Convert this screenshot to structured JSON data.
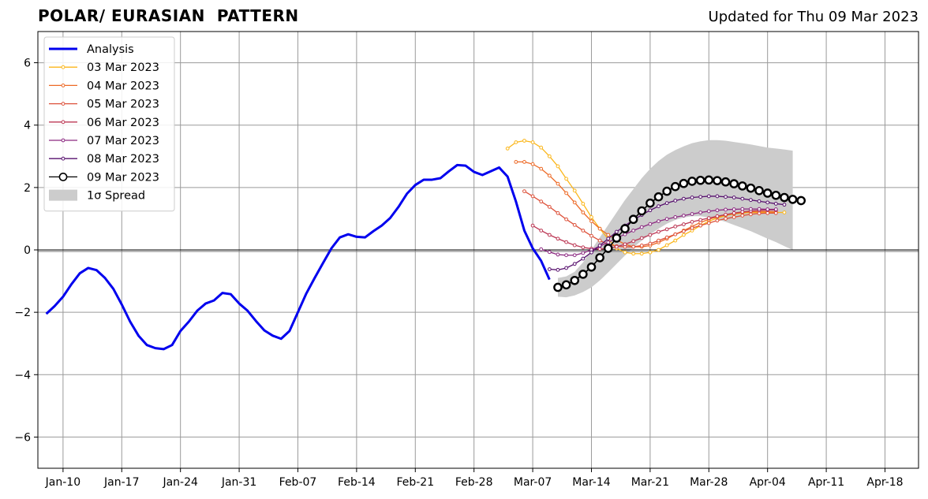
{
  "title": "POLAR/ EURASIAN  PATTERN",
  "subtitle": "Updated for Thu 09 Mar 2023",
  "chart_data": {
    "type": "line",
    "title": "POLAR/ EURASIAN  PATTERN",
    "xlabel": "",
    "ylabel": "",
    "x_range": [
      "2023-01-07",
      "2023-04-22"
    ],
    "ylim": [
      -7,
      7
    ],
    "yticks": [
      -6,
      -4,
      -2,
      0,
      2,
      4,
      6
    ],
    "ytick_labels": [
      "−6",
      "−4",
      "−2",
      "0",
      "2",
      "4",
      "6"
    ],
    "xticks": [
      {
        "date": "2023-01-10",
        "label": "Jan-10"
      },
      {
        "date": "2023-01-17",
        "label": "Jan-17"
      },
      {
        "date": "2023-01-24",
        "label": "Jan-24"
      },
      {
        "date": "2023-01-31",
        "label": "Jan-31"
      },
      {
        "date": "2023-02-07",
        "label": "Feb-07"
      },
      {
        "date": "2023-02-14",
        "label": "Feb-14"
      },
      {
        "date": "2023-02-21",
        "label": "Feb-21"
      },
      {
        "date": "2023-02-28",
        "label": "Feb-28"
      },
      {
        "date": "2023-03-07",
        "label": "Mar-07"
      },
      {
        "date": "2023-03-14",
        "label": "Mar-14"
      },
      {
        "date": "2023-03-21",
        "label": "Mar-21"
      },
      {
        "date": "2023-03-28",
        "label": "Mar-28"
      },
      {
        "date": "2023-04-04",
        "label": "Apr-04"
      },
      {
        "date": "2023-04-11",
        "label": "Apr-11"
      },
      {
        "date": "2023-04-18",
        "label": "Apr-18"
      }
    ],
    "grid": true,
    "legend_position": "upper-left",
    "legend_labels": {
      "spread": "1σ Spread"
    },
    "analysis": {
      "name": "Analysis",
      "color": "#0000ee",
      "start_date": "2023-01-08",
      "values": [
        -2.05,
        -1.8,
        -1.5,
        -1.1,
        -0.75,
        -0.58,
        -0.65,
        -0.9,
        -1.25,
        -1.75,
        -2.3,
        -2.75,
        -3.05,
        -3.15,
        -3.18,
        -3.05,
        -2.6,
        -2.3,
        -1.95,
        -1.72,
        -1.62,
        -1.38,
        -1.42,
        -1.72,
        -1.95,
        -2.28,
        -2.58,
        -2.75,
        -2.85,
        -2.6,
        -2.0,
        -1.4,
        -0.9,
        -0.42,
        0.05,
        0.4,
        0.5,
        0.42,
        0.4,
        0.6,
        0.78,
        1.02,
        1.38,
        1.8,
        2.08,
        2.25,
        2.25,
        2.3,
        2.52,
        2.72,
        2.7,
        2.5,
        2.4,
        2.52,
        2.64,
        2.35,
        1.55,
        0.62,
        0.05,
        -0.35,
        -0.95
      ]
    },
    "spread": {
      "start_date": "2023-03-10",
      "upper": [
        -0.9,
        -0.85,
        -0.7,
        -0.4,
        0.0,
        0.4,
        0.8,
        1.2,
        1.6,
        1.95,
        2.3,
        2.6,
        2.85,
        3.05,
        3.2,
        3.32,
        3.42,
        3.48,
        3.52,
        3.52,
        3.5,
        3.46,
        3.42,
        3.38,
        3.33,
        3.28,
        3.25,
        3.22,
        3.18
      ],
      "lower": [
        -1.5,
        -1.52,
        -1.46,
        -1.35,
        -1.2,
        -0.98,
        -0.72,
        -0.45,
        -0.18,
        0.08,
        0.3,
        0.5,
        0.68,
        0.84,
        0.96,
        1.04,
        1.08,
        1.08,
        1.04,
        0.98,
        0.9,
        0.8,
        0.7,
        0.6,
        0.48,
        0.36,
        0.25,
        0.12,
        0.0
      ]
    },
    "series": [
      {
        "name": "03 Mar 2023",
        "color": "#fbb61a",
        "start_date": "2023-03-04",
        "values": [
          3.25,
          3.45,
          3.5,
          3.45,
          3.28,
          3.0,
          2.68,
          2.28,
          1.9,
          1.48,
          1.05,
          0.68,
          0.35,
          0.05,
          -0.08,
          -0.12,
          -0.12,
          -0.08,
          0.0,
          0.15,
          0.3,
          0.48,
          0.62,
          0.78,
          0.92,
          1.02,
          1.1,
          1.15,
          1.18,
          1.2,
          1.2,
          1.2,
          1.2,
          1.2
        ]
      },
      {
        "name": "04 Mar 2023",
        "color": "#ed6925",
        "start_date": "2023-03-05",
        "values": [
          2.82,
          2.82,
          2.75,
          2.6,
          2.38,
          2.12,
          1.82,
          1.52,
          1.2,
          0.92,
          0.68,
          0.48,
          0.32,
          0.18,
          0.1,
          0.1,
          0.14,
          0.24,
          0.36,
          0.5,
          0.62,
          0.75,
          0.88,
          0.98,
          1.06,
          1.12,
          1.16,
          1.2,
          1.22,
          1.23,
          1.23,
          1.22
        ]
      },
      {
        "name": "05 Mar 2023",
        "color": "#dd513a",
        "start_date": "2023-03-06",
        "values": [
          1.88,
          1.72,
          1.55,
          1.38,
          1.18,
          0.98,
          0.8,
          0.62,
          0.45,
          0.3,
          0.18,
          0.12,
          0.1,
          0.1,
          0.14,
          0.2,
          0.3,
          0.4,
          0.5,
          0.6,
          0.7,
          0.78,
          0.86,
          0.94,
          1.0,
          1.05,
          1.1,
          1.14,
          1.17,
          1.18,
          1.18
        ]
      },
      {
        "name": "06 Mar 2023",
        "color": "#bc3754",
        "start_date": "2023-03-07",
        "values": [
          0.78,
          0.62,
          0.48,
          0.36,
          0.25,
          0.15,
          0.08,
          0.04,
          0.03,
          0.05,
          0.1,
          0.18,
          0.28,
          0.38,
          0.48,
          0.58,
          0.66,
          0.75,
          0.82,
          0.9,
          0.96,
          1.02,
          1.08,
          1.13,
          1.18,
          1.22,
          1.25,
          1.27,
          1.28,
          1.28
        ]
      },
      {
        "name": "07 Mar 2023",
        "color": "#8c2981",
        "start_date": "2023-03-08",
        "values": [
          0.02,
          -0.07,
          -0.15,
          -0.17,
          -0.17,
          -0.1,
          0.0,
          0.12,
          0.24,
          0.38,
          0.5,
          0.62,
          0.73,
          0.83,
          0.92,
          0.99,
          1.05,
          1.1,
          1.15,
          1.2,
          1.24,
          1.27,
          1.29,
          1.3,
          1.31,
          1.31,
          1.31,
          1.3,
          1.3
        ]
      },
      {
        "name": "08 Mar 2023",
        "color": "#57106e",
        "start_date": "2023-03-09",
        "values": [
          -0.62,
          -0.64,
          -0.58,
          -0.45,
          -0.28,
          -0.08,
          0.14,
          0.36,
          0.58,
          0.78,
          0.96,
          1.12,
          1.27,
          1.4,
          1.5,
          1.58,
          1.64,
          1.68,
          1.7,
          1.72,
          1.72,
          1.7,
          1.68,
          1.64,
          1.6,
          1.56,
          1.52,
          1.48,
          1.45
        ]
      },
      {
        "name": "09 Mar 2023",
        "color": "#000000",
        "start_date": "2023-03-10",
        "marker": "open-circle",
        "values": [
          -1.2,
          -1.12,
          -0.98,
          -0.78,
          -0.55,
          -0.25,
          0.05,
          0.38,
          0.68,
          0.98,
          1.25,
          1.5,
          1.7,
          1.88,
          2.03,
          2.13,
          2.2,
          2.23,
          2.24,
          2.22,
          2.18,
          2.12,
          2.05,
          1.98,
          1.9,
          1.82,
          1.75,
          1.68,
          1.62,
          1.58
        ]
      }
    ]
  }
}
